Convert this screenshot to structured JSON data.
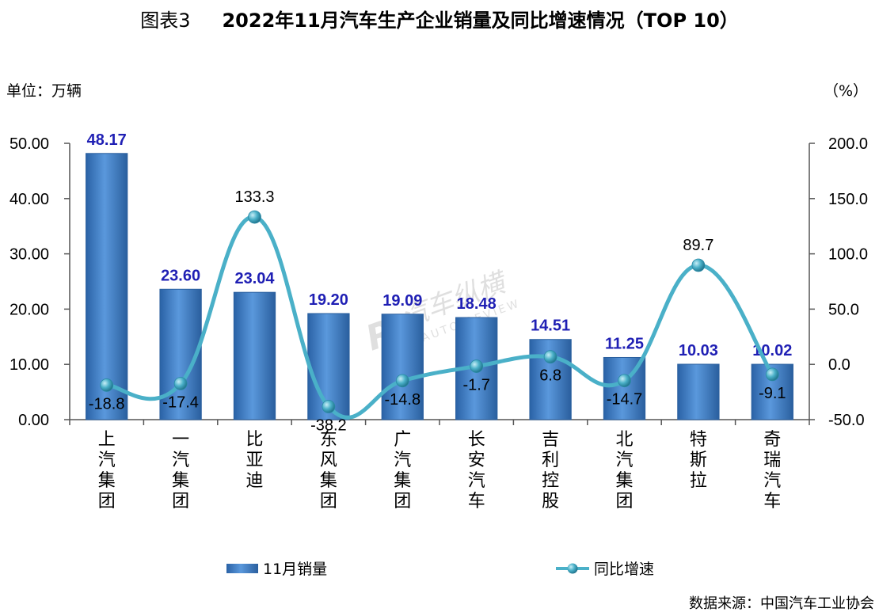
{
  "title": {
    "prefix": "图表3",
    "main": "2022年11月汽车生产企业销量及同比增速情况（TOP 10）"
  },
  "unit_left": "单位：万辆",
  "unit_right": "（%）",
  "source": "数据来源：中国汽车工业协会",
  "watermark": {
    "cn": "汽车纵横",
    "en": "AUTO REVIEW"
  },
  "colors": {
    "bar": "#3f7fc9",
    "bar_dark": "#2a5f9e",
    "bar_label": "#1f1fb4",
    "line": "#4ab0c8",
    "marker": "#3a9fbf"
  },
  "chart_data": {
    "type": "bar",
    "categories": [
      "上汽集团",
      "一汽集团",
      "比亚迪",
      "东风集团",
      "广汽集团",
      "长安汽车",
      "吉利控股",
      "北汽集团",
      "特斯拉",
      "奇瑞汽车"
    ],
    "series": [
      {
        "name": "11月销量",
        "type": "bar",
        "axis": "left",
        "values": [
          48.17,
          23.6,
          23.04,
          19.2,
          19.09,
          18.48,
          14.51,
          11.25,
          10.03,
          10.02
        ],
        "labels": [
          "48.17",
          "23.60",
          "23.04",
          "19.20",
          "19.09",
          "18.48",
          "14.51",
          "11.25",
          "10.03",
          "10.02"
        ]
      },
      {
        "name": "同比增速",
        "type": "line",
        "axis": "right",
        "values": [
          -18.8,
          -17.4,
          133.3,
          -38.2,
          -14.8,
          -1.7,
          6.8,
          -14.7,
          89.7,
          -9.1
        ],
        "labels": [
          "-18.8",
          "-17.4",
          "133.3",
          "-38.2",
          "-14.8",
          "-1.7",
          "6.8",
          "-14.7",
          "89.7",
          "-9.1"
        ]
      }
    ],
    "y_left": {
      "min": 0,
      "max": 50,
      "ticks": [
        "0.00",
        "10.00",
        "20.00",
        "30.00",
        "40.00",
        "50.00"
      ]
    },
    "y_right": {
      "min": -50,
      "max": 200,
      "ticks": [
        "-50.0",
        "0.0",
        "50.0",
        "100.0",
        "150.0",
        "200.0"
      ]
    },
    "grid": false,
    "legend_position": "bottom"
  }
}
